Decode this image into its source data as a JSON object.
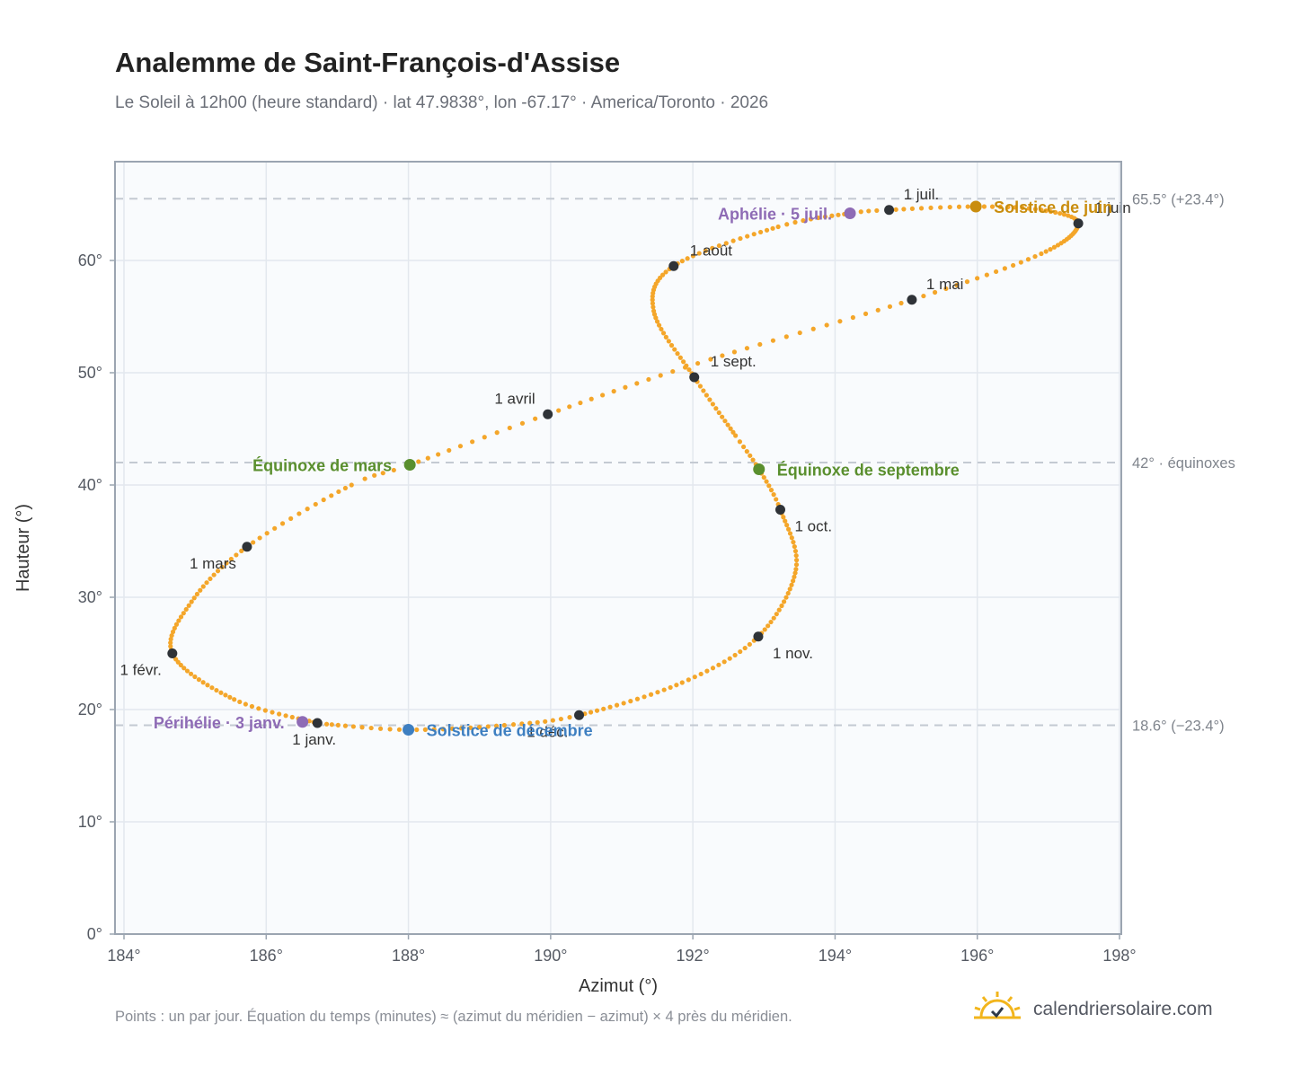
{
  "title": "Analemme de Saint-François-d'Assise",
  "subtitle": "Le Soleil à 12h00 (heure standard) · lat 47.9838°, lon -67.17° · America/Toronto · 2026",
  "footnote": "Points : un par jour. Équation du temps (minutes) ≈ (azimut du méridien − azimut) × 4 près du méridien.",
  "brand": {
    "name": "calendriersolaire.com",
    "icon": "sun-check-icon"
  },
  "colors": {
    "curve": "#f4a62a",
    "month_dot": "#2f3338",
    "equinox": "#5a8f2e",
    "perihelion": "#8e6bb5",
    "june_solstice": "#c98d0e",
    "december_solstice": "#3e7fc1",
    "plot_bg": "#f9fbfd",
    "grid": "#e3e8ee",
    "frame": "#9ba5b1",
    "reference": "#c4cad2"
  },
  "chart_data": {
    "type": "scatter",
    "xlabel": "Azimut (°)",
    "ylabel": "Hauteur (°)",
    "xlim": [
      184,
      198
    ],
    "ylim": [
      0,
      68.8
    ],
    "x_ticks": [
      184,
      186,
      188,
      190,
      192,
      194,
      196,
      198
    ],
    "x_tick_labels": [
      "184°",
      "186°",
      "188°",
      "190°",
      "192°",
      "194°",
      "196°",
      "198°"
    ],
    "y_ticks": [
      0,
      10,
      20,
      30,
      40,
      50,
      60
    ],
    "y_tick_labels": [
      "0°",
      "10°",
      "20°",
      "30°",
      "40°",
      "50°",
      "60°"
    ],
    "grid": true,
    "reference_lines": [
      {
        "y": 65.5,
        "label": "65.5° (+23.4°)"
      },
      {
        "y": 42.0,
        "label": "42° · équinoxes"
      },
      {
        "y": 18.6,
        "label": "18.6° (−23.4°)"
      }
    ],
    "path_anchors": [
      {
        "date": "01-01",
        "az": 186.72,
        "alt": 18.8
      },
      {
        "date": "01-15",
        "az": 185.55,
        "alt": 20.9
      },
      {
        "date": "02-01",
        "az": 184.68,
        "alt": 25.0
      },
      {
        "date": "02-15",
        "az": 184.95,
        "alt": 29.6
      },
      {
        "date": "03-01",
        "az": 185.73,
        "alt": 34.5
      },
      {
        "date": "03-15",
        "az": 187.2,
        "alt": 40.0
      },
      {
        "date": "03-20",
        "az": 188.02,
        "alt": 41.8
      },
      {
        "date": "04-01",
        "az": 189.96,
        "alt": 46.3
      },
      {
        "date": "04-15",
        "az": 192.25,
        "alt": 51.2
      },
      {
        "date": "05-01",
        "az": 195.08,
        "alt": 56.5
      },
      {
        "date": "05-15",
        "az": 196.9,
        "alt": 60.6
      },
      {
        "date": "06-01",
        "az": 197.42,
        "alt": 63.3
      },
      {
        "date": "06-12",
        "az": 196.9,
        "alt": 64.5
      },
      {
        "date": "06-21",
        "az": 195.98,
        "alt": 64.8
      },
      {
        "date": "07-01",
        "az": 194.76,
        "alt": 64.5
      },
      {
        "date": "07-05",
        "az": 194.21,
        "alt": 64.2
      },
      {
        "date": "07-15",
        "az": 193.2,
        "alt": 63.0
      },
      {
        "date": "08-01",
        "az": 191.73,
        "alt": 59.5
      },
      {
        "date": "08-15",
        "az": 191.45,
        "alt": 55.5
      },
      {
        "date": "09-01",
        "az": 192.02,
        "alt": 49.6
      },
      {
        "date": "09-15",
        "az": 192.6,
        "alt": 44.4
      },
      {
        "date": "09-22",
        "az": 192.93,
        "alt": 41.4
      },
      {
        "date": "10-01",
        "az": 193.23,
        "alt": 37.8
      },
      {
        "date": "10-15",
        "az": 193.45,
        "alt": 32.5
      },
      {
        "date": "11-01",
        "az": 192.92,
        "alt": 26.5
      },
      {
        "date": "11-15",
        "az": 191.85,
        "alt": 22.4
      },
      {
        "date": "12-01",
        "az": 190.4,
        "alt": 19.5
      },
      {
        "date": "12-10",
        "az": 189.35,
        "alt": 18.6
      },
      {
        "date": "12-21",
        "az": 188.0,
        "alt": 18.2
      },
      {
        "date": "12-31",
        "az": 186.85,
        "alt": 18.7
      }
    ],
    "month_markers": [
      {
        "label": "1 janv.",
        "az": 186.72,
        "alt": 18.8,
        "pos": "below"
      },
      {
        "label": "1 févr.",
        "az": 184.68,
        "alt": 25.0,
        "pos": "below-left"
      },
      {
        "label": "1 mars",
        "az": 185.73,
        "alt": 34.5,
        "pos": "below-left"
      },
      {
        "label": "1 avril",
        "az": 189.96,
        "alt": 46.3,
        "pos": "above-left"
      },
      {
        "label": "1 mai",
        "az": 195.08,
        "alt": 56.5,
        "pos": "above-right"
      },
      {
        "label": "1 juin",
        "az": 197.42,
        "alt": 63.3,
        "pos": "right"
      },
      {
        "label": "1 juil.",
        "az": 194.76,
        "alt": 64.5,
        "pos": "above-right"
      },
      {
        "label": "1 août",
        "az": 191.73,
        "alt": 59.5,
        "pos": "right"
      },
      {
        "label": "1 sept.",
        "az": 192.02,
        "alt": 49.6,
        "pos": "right"
      },
      {
        "label": "1 oct.",
        "az": 193.23,
        "alt": 37.8,
        "pos": "below-right"
      },
      {
        "label": "1 nov.",
        "az": 192.92,
        "alt": 26.5,
        "pos": "below-right"
      },
      {
        "label": "1 déc.",
        "az": 190.4,
        "alt": 19.5,
        "pos": "below-left"
      }
    ],
    "events": [
      {
        "label": "Équinoxe de mars",
        "az": 188.02,
        "alt": 41.8,
        "color_key": "equinox",
        "pos": "left"
      },
      {
        "label": "Équinoxe de septembre",
        "az": 192.93,
        "alt": 41.4,
        "color_key": "equinox",
        "pos": "right"
      },
      {
        "label": "Solstice de juin",
        "az": 195.98,
        "alt": 64.8,
        "color_key": "june_solstice",
        "pos": "right"
      },
      {
        "label": "Solstice de décembre",
        "az": 188.0,
        "alt": 18.2,
        "color_key": "december_solstice",
        "pos": "right"
      },
      {
        "label": "Aphélie · 5 juil.",
        "az": 194.21,
        "alt": 64.2,
        "color_key": "perihelion",
        "pos": "left"
      },
      {
        "label": "Périhélie · 3 janv.",
        "az": 186.51,
        "alt": 18.9,
        "color_key": "perihelion",
        "pos": "left"
      }
    ]
  }
}
